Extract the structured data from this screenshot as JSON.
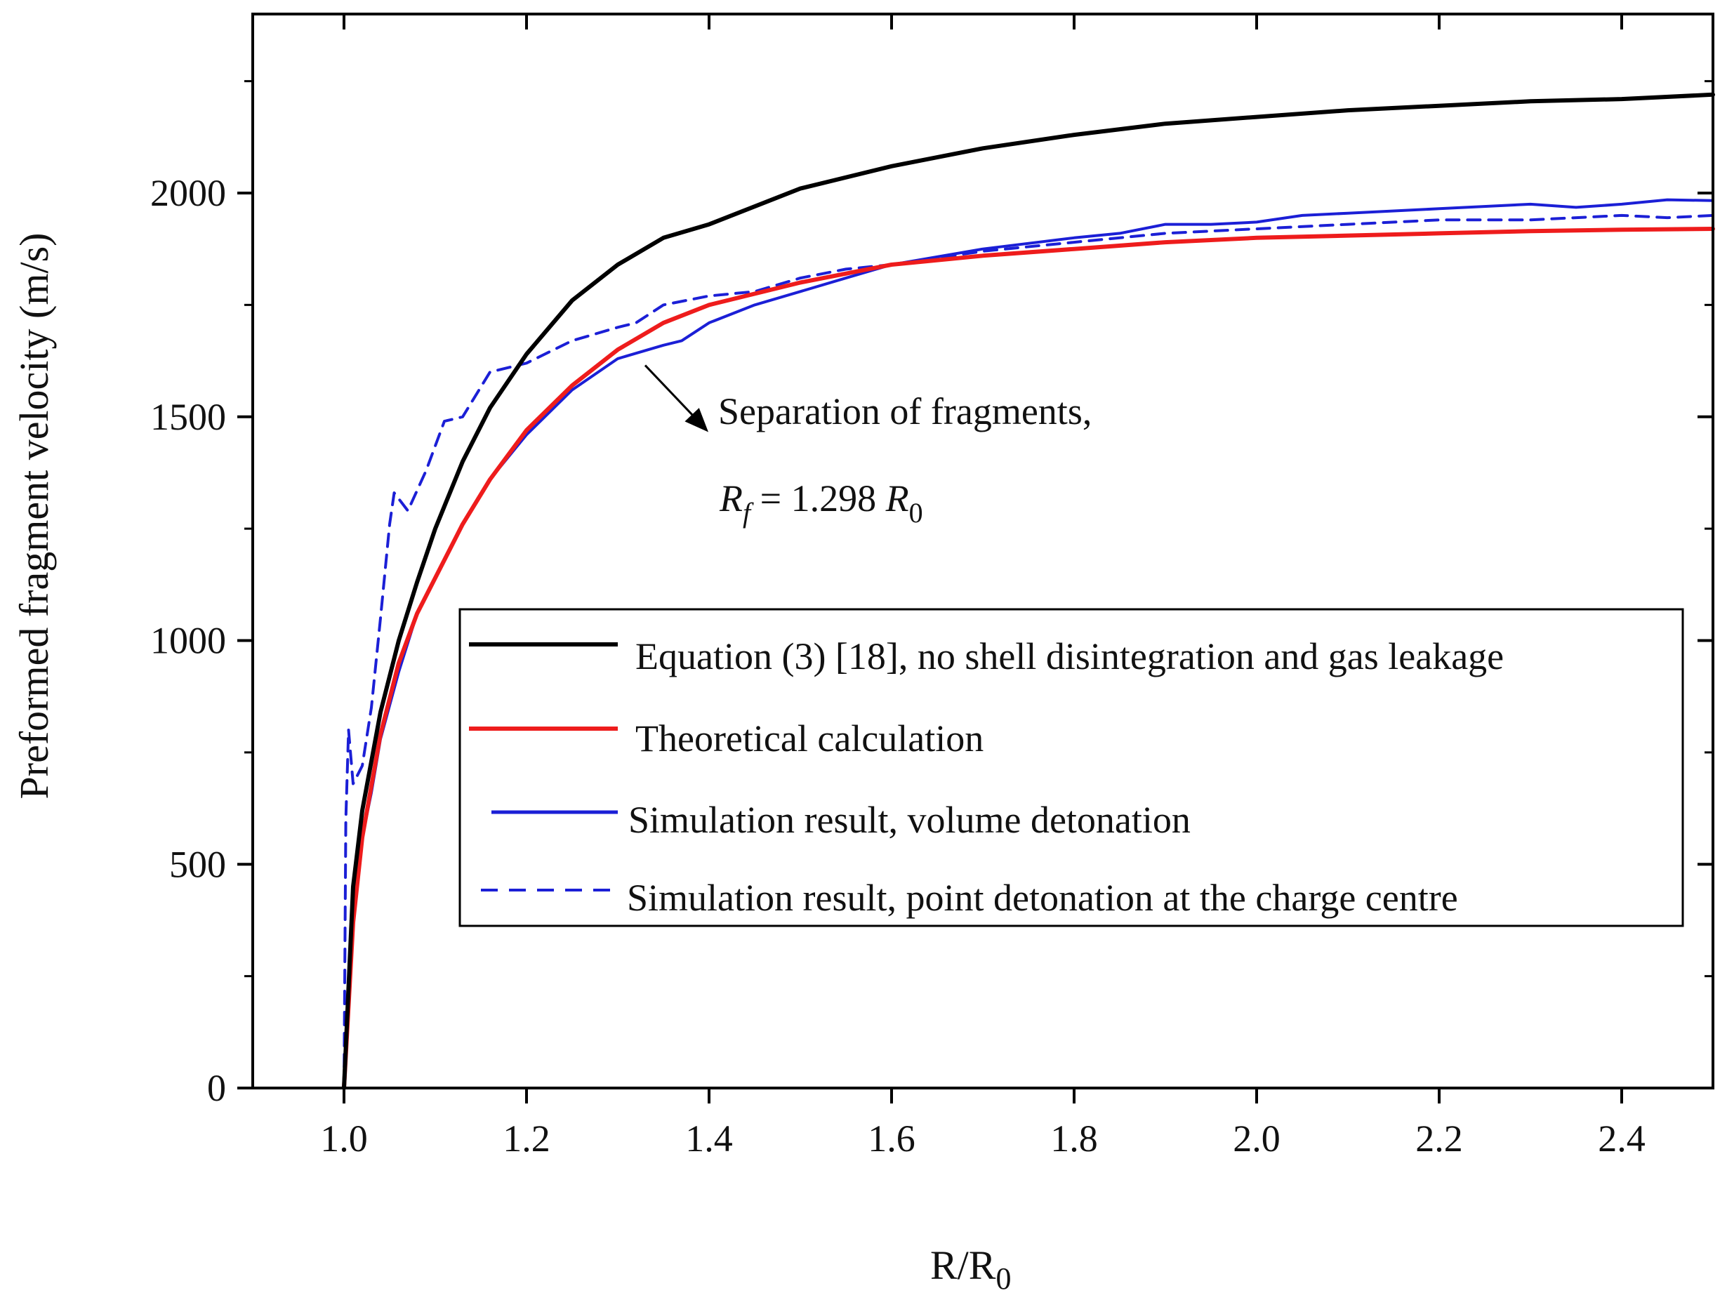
{
  "chart_data": {
    "type": "line",
    "title": "",
    "xlabel_main": "R/R",
    "xlabel_sub": "0",
    "ylabel": "Preformed fragment velocity (m/s)",
    "xlim": [
      0.9,
      2.5
    ],
    "ylim": [
      0,
      2400
    ],
    "x_ticks": [
      1.0,
      1.2,
      1.4,
      1.6,
      1.8,
      2.0,
      2.2,
      2.4
    ],
    "x_tick_labels": [
      "1.0",
      "1.2",
      "1.4",
      "1.6",
      "1.8",
      "2.0",
      "2.2",
      "2.4"
    ],
    "y_ticks": [
      0,
      500,
      1000,
      1500,
      2000
    ],
    "y_tick_labels": [
      "0",
      "500",
      "1000",
      "1500",
      "2000"
    ],
    "grid": false,
    "legend_position": "inside-right",
    "series": [
      {
        "name": "Equation (3) [18], no shell disintegration and gas leakage",
        "color": "#000000",
        "style": "solid",
        "x": [
          1.0,
          1.01,
          1.02,
          1.04,
          1.06,
          1.08,
          1.1,
          1.13,
          1.16,
          1.2,
          1.25,
          1.3,
          1.35,
          1.4,
          1.5,
          1.6,
          1.7,
          1.8,
          1.9,
          2.0,
          2.1,
          2.2,
          2.3,
          2.4,
          2.5
        ],
        "y": [
          0,
          450,
          620,
          840,
          1000,
          1130,
          1250,
          1400,
          1520,
          1640,
          1760,
          1840,
          1900,
          1930,
          2010,
          2060,
          2100,
          2130,
          2155,
          2170,
          2185,
          2195,
          2205,
          2210,
          2220
        ]
      },
      {
        "name": "Theoretical calculation",
        "color": "#ee1c1c",
        "style": "solid",
        "x": [
          1.0,
          1.01,
          1.02,
          1.04,
          1.06,
          1.08,
          1.1,
          1.13,
          1.16,
          1.2,
          1.25,
          1.3,
          1.35,
          1.4,
          1.5,
          1.6,
          1.7,
          1.8,
          1.9,
          2.0,
          2.1,
          2.2,
          2.3,
          2.4,
          2.5
        ],
        "y": [
          0,
          370,
          560,
          790,
          950,
          1060,
          1140,
          1260,
          1360,
          1470,
          1570,
          1650,
          1710,
          1750,
          1800,
          1840,
          1860,
          1875,
          1890,
          1900,
          1905,
          1910,
          1915,
          1918,
          1920
        ]
      },
      {
        "name": "Simulation result, volume detonation",
        "color": "#1b1fd6",
        "style": "solid",
        "x": [
          1.0,
          1.01,
          1.02,
          1.03,
          1.04,
          1.06,
          1.08,
          1.1,
          1.13,
          1.16,
          1.2,
          1.25,
          1.3,
          1.35,
          1.37,
          1.4,
          1.45,
          1.5,
          1.55,
          1.6,
          1.7,
          1.8,
          1.85,
          1.9,
          1.95,
          2.0,
          2.05,
          2.1,
          2.2,
          2.3,
          2.35,
          2.4,
          2.45,
          2.5
        ],
        "y": [
          0,
          420,
          560,
          660,
          780,
          930,
          1060,
          1140,
          1260,
          1360,
          1460,
          1560,
          1630,
          1660,
          1670,
          1710,
          1750,
          1780,
          1810,
          1840,
          1875,
          1900,
          1910,
          1930,
          1930,
          1935,
          1950,
          1955,
          1965,
          1975,
          1968,
          1975,
          1985,
          1983
        ]
      },
      {
        "name": "Simulation result, point detonation at the charge centre",
        "color": "#1b1fd6",
        "style": "dashed",
        "x": [
          1.0,
          1.002,
          1.005,
          1.01,
          1.02,
          1.03,
          1.04,
          1.05,
          1.055,
          1.07,
          1.09,
          1.11,
          1.13,
          1.16,
          1.2,
          1.25,
          1.3,
          1.32,
          1.35,
          1.4,
          1.45,
          1.5,
          1.55,
          1.6,
          1.7,
          1.8,
          1.9,
          2.0,
          2.1,
          2.2,
          2.3,
          2.4,
          2.45,
          2.5
        ],
        "y": [
          0,
          600,
          800,
          680,
          720,
          850,
          1050,
          1260,
          1330,
          1290,
          1380,
          1490,
          1500,
          1600,
          1620,
          1670,
          1700,
          1710,
          1750,
          1770,
          1780,
          1810,
          1830,
          1840,
          1870,
          1890,
          1910,
          1920,
          1930,
          1940,
          1940,
          1950,
          1945,
          1950
        ]
      }
    ],
    "annotations": [
      {
        "text": "Separation of fragments,",
        "x": 1.33,
        "y": 1615
      },
      {
        "text": "R_f = 1.298 R_0",
        "parts": [
          "R",
          "f",
          " = 1.298 ",
          "R",
          "0"
        ]
      }
    ]
  }
}
